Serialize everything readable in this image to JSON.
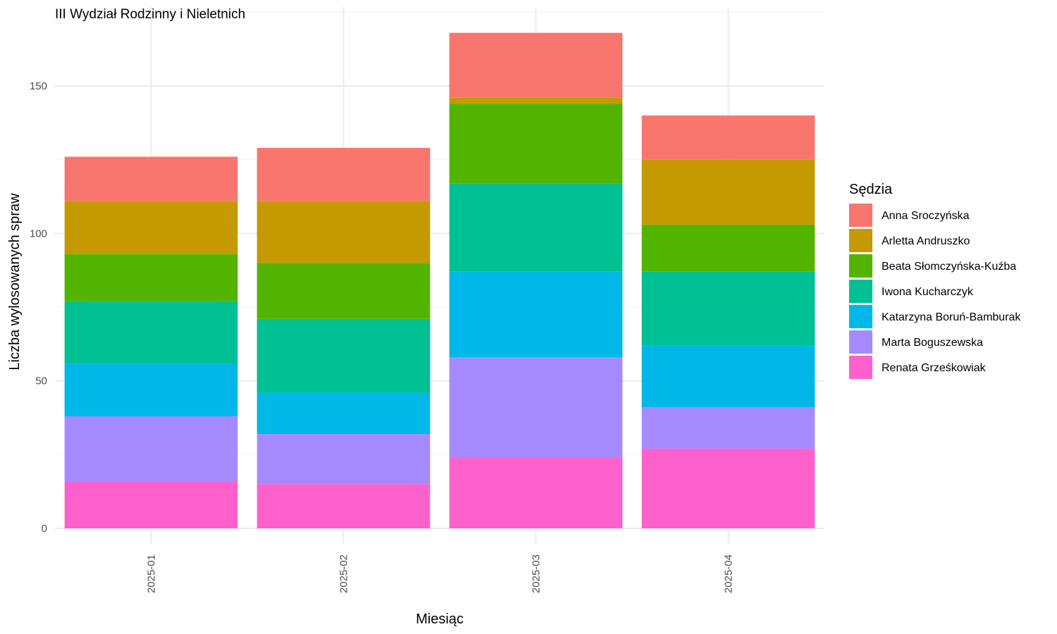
{
  "chart_data": {
    "type": "bar",
    "stacked": true,
    "title": "III Wydział Rodzinny i Nieletnich",
    "xlabel": "Miesiąc",
    "ylabel": "Liczba wylosowanych spraw",
    "ylim": [
      0,
      175
    ],
    "yticks": [
      0,
      50,
      100,
      150
    ],
    "grid": true,
    "legend": {
      "title": "Sędzia",
      "position": "right"
    },
    "categories": [
      "2025-01",
      "2025-02",
      "2025-03",
      "2025-04"
    ],
    "series": [
      {
        "name": "Renata Grześkowiak",
        "color": "#FF61CC",
        "values": [
          16,
          15,
          24,
          27
        ]
      },
      {
        "name": "Marta Boguszewska",
        "color": "#A58AFF",
        "values": [
          22,
          17,
          34,
          14
        ]
      },
      {
        "name": "Katarzyna Boruń-Bamburak",
        "color": "#00B8E7",
        "values": [
          18,
          14,
          29,
          21
        ]
      },
      {
        "name": "Iwona Kucharczyk",
        "color": "#00C094",
        "values": [
          21,
          25,
          30,
          25
        ]
      },
      {
        "name": "Beata Słomczyńska-Kuźba",
        "color": "#53B400",
        "values": [
          16,
          19,
          27,
          16
        ]
      },
      {
        "name": "Arletta Andruszko",
        "color": "#C49A00",
        "values": [
          18,
          21,
          2,
          22
        ]
      },
      {
        "name": "Anna Sroczyńska",
        "color": "#F8766D",
        "values": [
          15,
          18,
          22,
          15
        ]
      }
    ],
    "legend_order": [
      "Anna Sroczyńska",
      "Arletta Andruszko",
      "Beata Słomczyńska-Kuźba",
      "Iwona Kucharczyk",
      "Katarzyna Boruń-Bamburak",
      "Marta Boguszewska",
      "Renata Grześkowiak"
    ]
  }
}
